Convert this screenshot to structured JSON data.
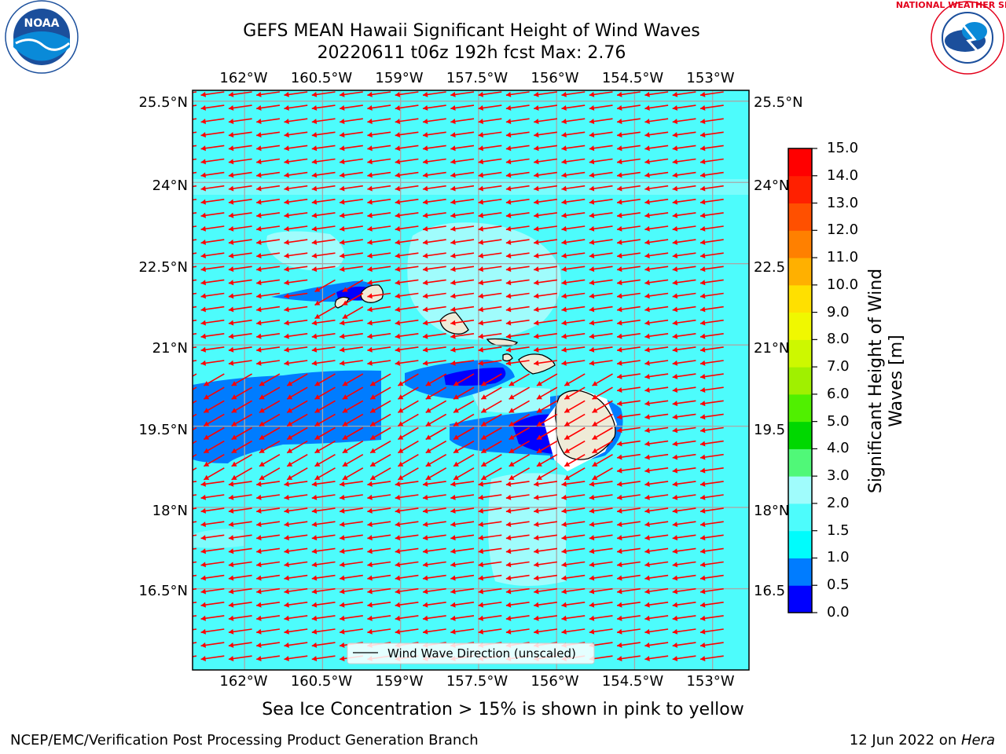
{
  "header": {
    "title_line1": "GEFS MEAN Hawaii Significant Height of Wind Waves",
    "title_line2": "20220611 t06z 192h fcst   Max: 2.76"
  },
  "logos": {
    "left": {
      "name": "noaa-logo",
      "text": "NOAA",
      "ring_text": "NATIONAL OCEANIC AND ATMOSPHERIC ADMINISTRATION · U.S. DEPARTMENT OF COMMERCE",
      "color": "#1b4f9c"
    },
    "right": {
      "name": "nws-logo",
      "ring_text": "NATIONAL WEATHER SERVICE",
      "color": "#e3001b"
    }
  },
  "map": {
    "lon_ticks": [
      "162°W",
      "160.5°W",
      "159°W",
      "157.5°W",
      "156°W",
      "154.5°W",
      "153°W"
    ],
    "lon_values": [
      -162,
      -160.5,
      -159,
      -157.5,
      -156,
      -154.5,
      -153
    ],
    "lat_ticks": [
      "25.5°N",
      "24°N",
      "22.5°N",
      "21°N",
      "19.5°N",
      "18°N",
      "16.5°N"
    ],
    "lat_values": [
      25.5,
      24,
      22.5,
      21,
      19.5,
      18,
      16.5
    ],
    "right_lat_ticks": [
      "25.5°N",
      "24°N",
      "22.5",
      "21°N",
      "19.5",
      "18°N",
      "16.5"
    ],
    "extent": {
      "lon_min": -163,
      "lon_max": -152.3,
      "lat_min": 15.0,
      "lat_max": 25.7
    },
    "legend_label": "Wind Wave Direction (unscaled)",
    "ocean_color": "#4dfcfc",
    "arrow_color": "#ff0000",
    "land_color": "#efebd7"
  },
  "colorbar": {
    "label": "Significant Height of Wind Waves [m]",
    "tick_labels": [
      "0.0",
      "0.5",
      "1.0",
      "1.5",
      "2.0",
      "3.0",
      "4.0",
      "5.0",
      "6.0",
      "7.0",
      "8.0",
      "9.0",
      "10.0",
      "11.0",
      "12.0",
      "13.0",
      "14.0",
      "15.0"
    ],
    "colors": [
      "#0000ff",
      "#007cff",
      "#00fcfc",
      "#4dfcfc",
      "#a0fcfc",
      "#50f878",
      "#00d800",
      "#50f000",
      "#a0f000",
      "#cdf800",
      "#f0f800",
      "#ffe000",
      "#ffb000",
      "#ff8000",
      "#ff5000",
      "#ff2000",
      "#ff0000"
    ]
  },
  "caption": "Sea Ice Concentration > 15% is shown in pink to yellow",
  "footer": {
    "left": "NCEP/EMC/Verification Post Processing Product Generation Branch",
    "right_prefix": "12 Jun 2022 on ",
    "right_host": "Hera"
  }
}
